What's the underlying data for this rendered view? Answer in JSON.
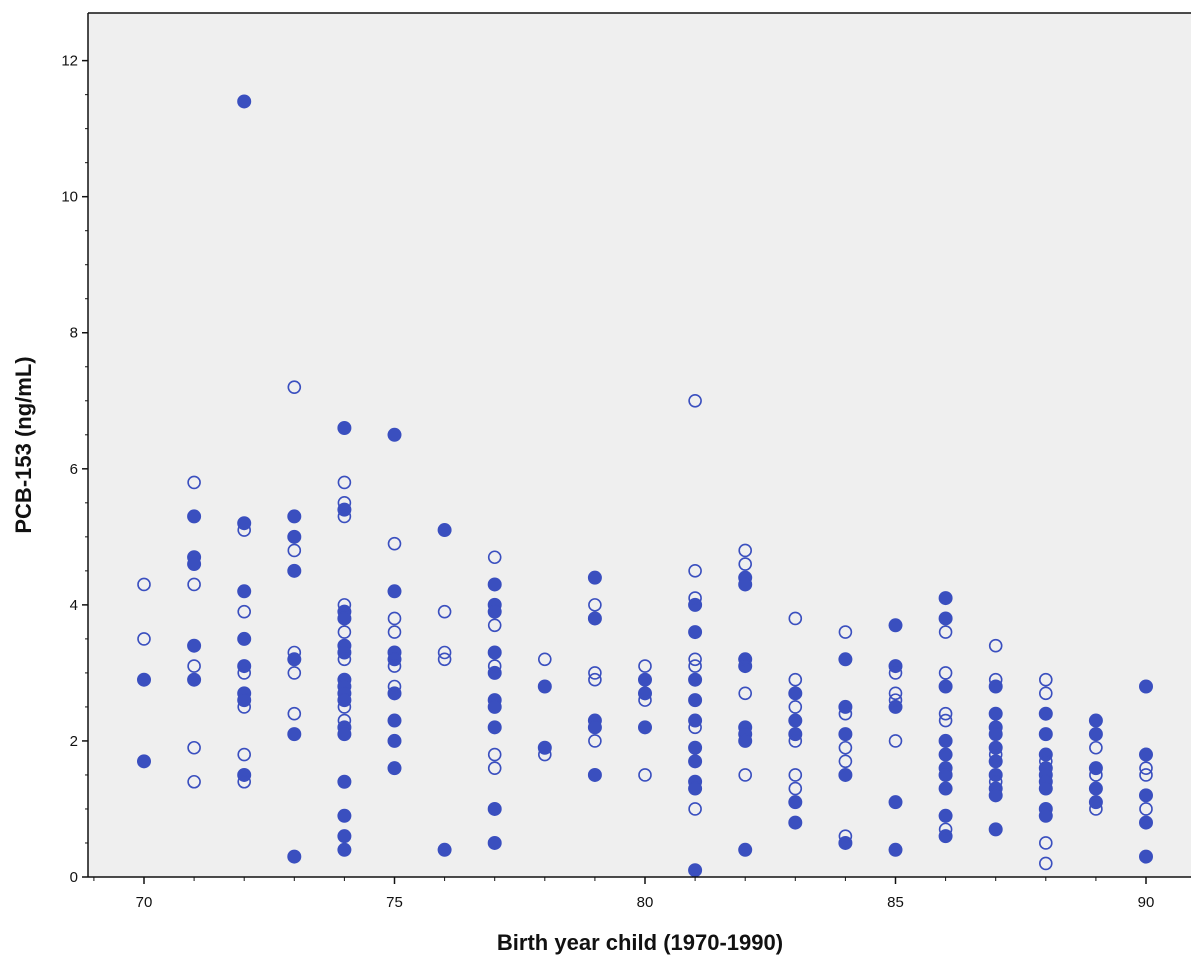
{
  "chart_data": {
    "type": "scatter",
    "title": "",
    "xlabel": "Birth year child (1970-1990)",
    "ylabel": "PCB-153 (ng/mL)",
    "xlim": [
      69,
      91
    ],
    "ylim": [
      0,
      12.7
    ],
    "x_ticks": [
      70,
      75,
      80,
      85,
      90
    ],
    "y_ticks": [
      0,
      2,
      4,
      6,
      8,
      10,
      12
    ],
    "grid": false,
    "legend": "none",
    "colors": {
      "marker": "#3a4fbf",
      "plot_background": "#efefef",
      "axis": "#111111"
    },
    "series": [
      {
        "marker": "filled-circle",
        "points": [
          [
            70,
            2.9
          ],
          [
            70,
            1.7
          ],
          [
            71,
            5.3
          ],
          [
            71,
            4.7
          ],
          [
            71,
            4.6
          ],
          [
            71,
            3.4
          ],
          [
            71,
            2.9
          ],
          [
            72,
            11.4
          ],
          [
            72,
            5.2
          ],
          [
            72,
            4.2
          ],
          [
            72,
            3.5
          ],
          [
            72,
            3.1
          ],
          [
            72,
            2.7
          ],
          [
            72,
            2.6
          ],
          [
            72,
            1.5
          ],
          [
            73,
            5.3
          ],
          [
            73,
            5.0
          ],
          [
            73,
            4.5
          ],
          [
            73,
            3.2
          ],
          [
            73,
            2.1
          ],
          [
            73,
            0.3
          ],
          [
            74,
            6.6
          ],
          [
            74,
            5.4
          ],
          [
            74,
            3.9
          ],
          [
            74,
            3.8
          ],
          [
            74,
            3.4
          ],
          [
            74,
            3.3
          ],
          [
            74,
            2.9
          ],
          [
            74,
            2.8
          ],
          [
            74,
            2.7
          ],
          [
            74,
            2.6
          ],
          [
            74,
            2.2
          ],
          [
            74,
            2.1
          ],
          [
            74,
            1.4
          ],
          [
            74,
            0.9
          ],
          [
            74,
            0.6
          ],
          [
            74,
            0.4
          ],
          [
            75,
            6.5
          ],
          [
            75,
            4.2
          ],
          [
            75,
            3.3
          ],
          [
            75,
            3.2
          ],
          [
            75,
            2.7
          ],
          [
            75,
            2.3
          ],
          [
            75,
            2.0
          ],
          [
            75,
            1.6
          ],
          [
            76,
            5.1
          ],
          [
            76,
            0.4
          ],
          [
            77,
            4.3
          ],
          [
            77,
            4.0
          ],
          [
            77,
            3.9
          ],
          [
            77,
            3.3
          ],
          [
            77,
            3.0
          ],
          [
            77,
            2.6
          ],
          [
            77,
            2.5
          ],
          [
            77,
            2.2
          ],
          [
            77,
            1.0
          ],
          [
            77,
            0.5
          ],
          [
            78,
            2.8
          ],
          [
            78,
            1.9
          ],
          [
            79,
            4.4
          ],
          [
            79,
            3.8
          ],
          [
            79,
            2.3
          ],
          [
            79,
            2.2
          ],
          [
            79,
            1.5
          ],
          [
            80,
            2.9
          ],
          [
            80,
            2.7
          ],
          [
            80,
            2.2
          ],
          [
            81,
            4.0
          ],
          [
            81,
            3.6
          ],
          [
            81,
            2.9
          ],
          [
            81,
            2.6
          ],
          [
            81,
            2.3
          ],
          [
            81,
            1.9
          ],
          [
            81,
            1.7
          ],
          [
            81,
            1.4
          ],
          [
            81,
            1.3
          ],
          [
            81,
            0.1
          ],
          [
            82,
            4.4
          ],
          [
            82,
            4.3
          ],
          [
            82,
            3.2
          ],
          [
            82,
            3.1
          ],
          [
            82,
            2.2
          ],
          [
            82,
            2.1
          ],
          [
            82,
            2.0
          ],
          [
            82,
            0.4
          ],
          [
            83,
            2.7
          ],
          [
            83,
            2.3
          ],
          [
            83,
            2.1
          ],
          [
            83,
            1.1
          ],
          [
            83,
            0.8
          ],
          [
            84,
            3.2
          ],
          [
            84,
            2.5
          ],
          [
            84,
            2.1
          ],
          [
            84,
            1.5
          ],
          [
            84,
            0.5
          ],
          [
            85,
            3.7
          ],
          [
            85,
            3.1
          ],
          [
            85,
            2.5
          ],
          [
            85,
            1.1
          ],
          [
            85,
            0.4
          ],
          [
            86,
            4.1
          ],
          [
            86,
            3.8
          ],
          [
            86,
            2.8
          ],
          [
            86,
            2.0
          ],
          [
            86,
            1.8
          ],
          [
            86,
            1.6
          ],
          [
            86,
            1.5
          ],
          [
            86,
            1.3
          ],
          [
            86,
            0.9
          ],
          [
            86,
            0.6
          ],
          [
            87,
            2.8
          ],
          [
            87,
            2.4
          ],
          [
            87,
            2.2
          ],
          [
            87,
            2.1
          ],
          [
            87,
            1.9
          ],
          [
            87,
            1.7
          ],
          [
            87,
            1.5
          ],
          [
            87,
            1.3
          ],
          [
            87,
            1.2
          ],
          [
            87,
            0.7
          ],
          [
            88,
            2.4
          ],
          [
            88,
            2.1
          ],
          [
            88,
            1.8
          ],
          [
            88,
            1.6
          ],
          [
            88,
            1.5
          ],
          [
            88,
            1.4
          ],
          [
            88,
            1.3
          ],
          [
            88,
            1.0
          ],
          [
            88,
            0.9
          ],
          [
            89,
            2.3
          ],
          [
            89,
            2.1
          ],
          [
            89,
            1.6
          ],
          [
            89,
            1.3
          ],
          [
            89,
            1.1
          ],
          [
            90,
            2.8
          ],
          [
            90,
            1.8
          ],
          [
            90,
            1.2
          ],
          [
            90,
            0.8
          ],
          [
            90,
            0.3
          ]
        ]
      },
      {
        "marker": "open-circle",
        "points": [
          [
            70,
            4.3
          ],
          [
            70,
            3.5
          ],
          [
            71,
            5.8
          ],
          [
            71,
            4.3
          ],
          [
            71,
            3.1
          ],
          [
            71,
            1.9
          ],
          [
            71,
            1.4
          ],
          [
            72,
            5.1
          ],
          [
            72,
            3.9
          ],
          [
            72,
            3.0
          ],
          [
            72,
            2.5
          ],
          [
            72,
            1.8
          ],
          [
            72,
            1.4
          ],
          [
            73,
            7.2
          ],
          [
            73,
            4.8
          ],
          [
            73,
            3.3
          ],
          [
            73,
            3.0
          ],
          [
            73,
            2.4
          ],
          [
            74,
            5.8
          ],
          [
            74,
            5.5
          ],
          [
            74,
            5.3
          ],
          [
            74,
            4.0
          ],
          [
            74,
            3.6
          ],
          [
            74,
            3.2
          ],
          [
            74,
            2.5
          ],
          [
            74,
            2.3
          ],
          [
            75,
            4.9
          ],
          [
            75,
            3.8
          ],
          [
            75,
            3.6
          ],
          [
            75,
            3.1
          ],
          [
            75,
            2.8
          ],
          [
            76,
            3.9
          ],
          [
            76,
            3.3
          ],
          [
            76,
            3.2
          ],
          [
            77,
            4.7
          ],
          [
            77,
            3.7
          ],
          [
            77,
            3.1
          ],
          [
            77,
            1.8
          ],
          [
            77,
            1.6
          ],
          [
            78,
            3.2
          ],
          [
            78,
            1.8
          ],
          [
            79,
            4.0
          ],
          [
            79,
            3.0
          ],
          [
            79,
            2.9
          ],
          [
            79,
            2.0
          ],
          [
            80,
            3.1
          ],
          [
            80,
            2.6
          ],
          [
            80,
            1.5
          ],
          [
            81,
            7.0
          ],
          [
            81,
            4.5
          ],
          [
            81,
            4.1
          ],
          [
            81,
            3.2
          ],
          [
            81,
            3.1
          ],
          [
            81,
            2.2
          ],
          [
            81,
            1.0
          ],
          [
            82,
            4.8
          ],
          [
            82,
            4.6
          ],
          [
            82,
            3.2
          ],
          [
            82,
            2.7
          ],
          [
            82,
            1.5
          ],
          [
            83,
            3.8
          ],
          [
            83,
            2.9
          ],
          [
            83,
            2.5
          ],
          [
            83,
            2.0
          ],
          [
            83,
            1.5
          ],
          [
            83,
            1.3
          ],
          [
            84,
            3.6
          ],
          [
            84,
            2.4
          ],
          [
            84,
            1.9
          ],
          [
            84,
            1.7
          ],
          [
            84,
            0.6
          ],
          [
            85,
            3.0
          ],
          [
            85,
            2.7
          ],
          [
            85,
            2.6
          ],
          [
            85,
            2.0
          ],
          [
            86,
            3.6
          ],
          [
            86,
            3.0
          ],
          [
            86,
            2.4
          ],
          [
            86,
            2.3
          ],
          [
            86,
            1.5
          ],
          [
            86,
            0.7
          ],
          [
            87,
            3.4
          ],
          [
            87,
            2.9
          ],
          [
            87,
            1.8
          ],
          [
            87,
            1.4
          ],
          [
            88,
            2.9
          ],
          [
            88,
            2.7
          ],
          [
            88,
            1.7
          ],
          [
            88,
            0.5
          ],
          [
            88,
            0.2
          ],
          [
            89,
            1.9
          ],
          [
            89,
            1.5
          ],
          [
            89,
            1.0
          ],
          [
            90,
            1.6
          ],
          [
            90,
            1.5
          ],
          [
            90,
            1.0
          ]
        ]
      }
    ]
  }
}
